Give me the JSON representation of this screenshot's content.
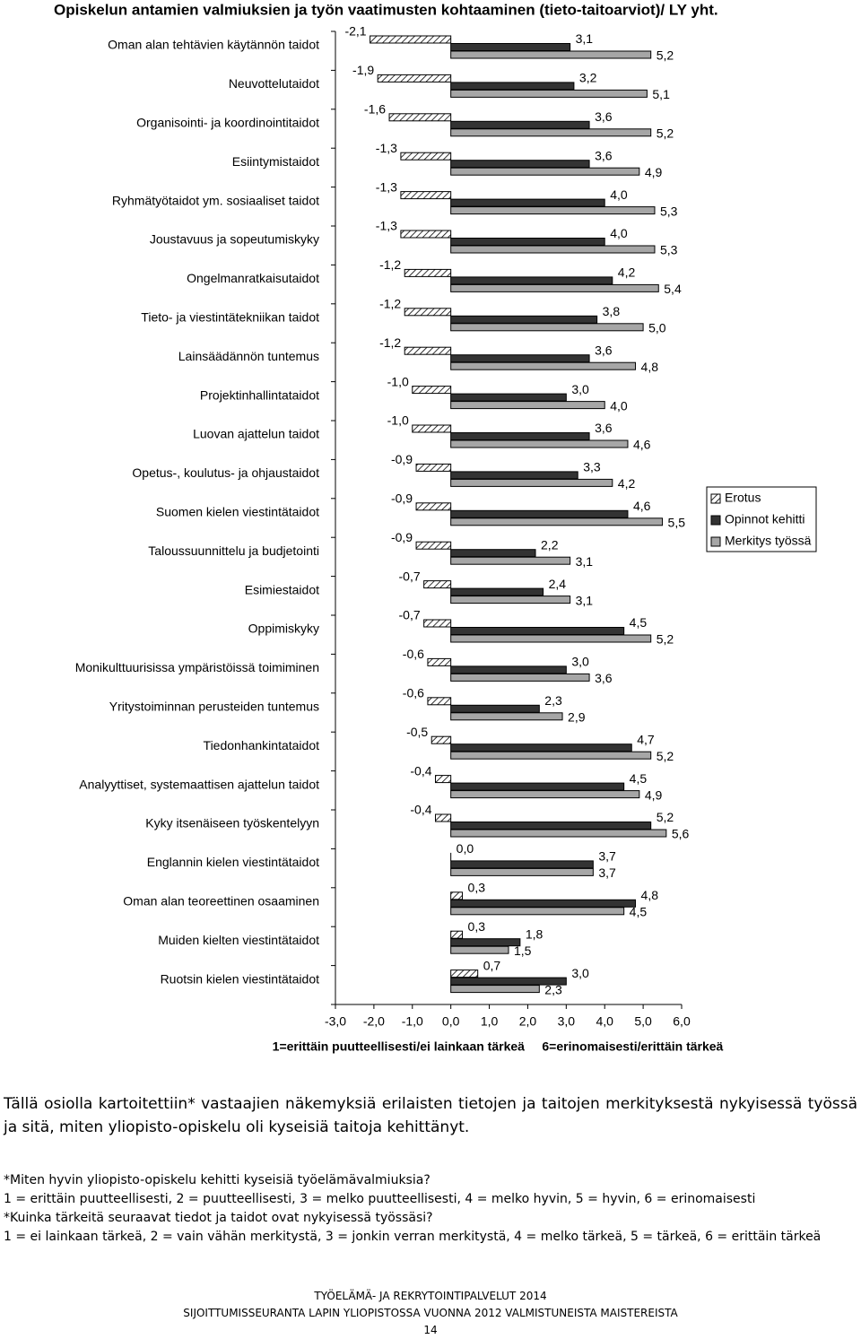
{
  "chart_data": {
    "type": "bar",
    "orientation": "horizontal",
    "title": "Opiskelun antamien valmiuksien ja työn vaatimusten kohtaaminen (tieto-taitoarviot)/ LY yht.",
    "xlabel": "1=erittäin puutteellisesti/ei lainkaan tärkeä     6=erinomaisesti/erittäin tärkeä",
    "categories": [
      "Oman alan tehtävien käytännön taidot",
      "Neuvottelutaidot",
      "Organisointi- ja koordinointitaidot",
      "Esiintymistaidot",
      "Ryhmätyötaidot ym. sosiaaliset taidot",
      "Joustavuus ja sopeutumiskyky",
      "Ongelmanratkaisutaidot",
      "Tieto- ja viestintätekniikan taidot",
      "Lainsäädännön tuntemus",
      "Projektinhallintataidot",
      "Luovan ajattelun taidot",
      "Opetus-, koulutus- ja ohjaustaidot",
      "Suomen kielen viestintätaidot",
      "Taloussuunnittelu ja budjetointi",
      "Esimiestaidot",
      "Oppimiskyky",
      "Monikulttuurisissa ympäristöissä toimiminen",
      "Yritystoiminnan perusteiden tuntemus",
      "Tiedonhankintataidot",
      "Analyyttiset, systemaattisen ajattelun taidot",
      "Kyky itsenäiseen työskentelyyn",
      "Englannin kielen viestintätaidot",
      "Oman alan teoreettinen osaaminen",
      "Muiden kielten viestintätaidot",
      "Ruotsin kielen viestintätaidot"
    ],
    "series": [
      {
        "name": "Erotus",
        "color": "#ffffff",
        "values": [
          -2.1,
          -1.9,
          -1.6,
          -1.3,
          -1.3,
          -1.3,
          -1.2,
          -1.2,
          -1.2,
          -1.0,
          -1.0,
          -0.9,
          -0.9,
          -0.9,
          -0.7,
          -0.7,
          -0.6,
          -0.6,
          -0.5,
          -0.4,
          -0.4,
          0.0,
          0.3,
          0.3,
          0.7
        ],
        "value_labels": [
          "-2,1",
          "-1,9",
          "-1,6",
          "-1,3",
          "-1,3",
          "-1,3",
          "-1,2",
          "-1,2",
          "-1,2",
          "-1,0",
          "-1,0",
          "-0,9",
          "-0,9",
          "-0,9",
          "-0,7",
          "-0,7",
          "-0,6",
          "-0,6",
          "-0,5",
          "-0,4",
          "-0,4",
          "0,0",
          "0,3",
          "0,3",
          "0,7"
        ]
      },
      {
        "name": "Opinnot kehitti",
        "color": "#333333",
        "values": [
          3.1,
          3.2,
          3.6,
          3.6,
          4.0,
          4.0,
          4.2,
          3.8,
          3.6,
          3.0,
          3.6,
          3.3,
          4.6,
          2.2,
          2.4,
          4.5,
          3.0,
          2.3,
          4.7,
          4.5,
          5.2,
          3.7,
          4.8,
          1.8,
          3.0
        ],
        "value_labels": [
          "3,1",
          "3,2",
          "3,6",
          "3,6",
          "4,0",
          "4,0",
          "4,2",
          "3,8",
          "3,6",
          "3,0",
          "3,6",
          "3,3",
          "4,6",
          "2,2",
          "2,4",
          "4,5",
          "3,0",
          "2,3",
          "4,7",
          "4,5",
          "5,2",
          "3,7",
          "4,8",
          "1,8",
          "3,0"
        ]
      },
      {
        "name": "Merkitys työssä",
        "color": "#a6a6a6",
        "values": [
          5.2,
          5.1,
          5.2,
          4.9,
          5.3,
          5.3,
          5.4,
          5.0,
          4.8,
          4.0,
          4.6,
          4.2,
          5.5,
          3.1,
          3.1,
          5.2,
          3.6,
          2.9,
          5.2,
          4.9,
          5.6,
          3.7,
          4.5,
          1.5,
          2.3
        ],
        "value_labels": [
          "5,2",
          "5,1",
          "5,2",
          "4,9",
          "5,3",
          "5,3",
          "5,4",
          "5,0",
          "4,8",
          "4,0",
          "4,6",
          "4,2",
          "5,5",
          "3,1",
          "3,1",
          "5,2",
          "3,6",
          "2,9",
          "5,2",
          "4,9",
          "5,6",
          "3,7",
          "4,5",
          "1,5",
          "2,3"
        ]
      }
    ],
    "xlim": [
      -3,
      6
    ],
    "xticks": [
      {
        "value": -3,
        "label": "-3,0"
      },
      {
        "value": -2,
        "label": "-2,0"
      },
      {
        "value": -1,
        "label": "-1,0"
      },
      {
        "value": 0,
        "label": "0,0"
      },
      {
        "value": 1,
        "label": "1,0"
      },
      {
        "value": 2,
        "label": "2,0"
      },
      {
        "value": 3,
        "label": "3,0"
      },
      {
        "value": 4,
        "label": "4,0"
      },
      {
        "value": 5,
        "label": "5,0"
      },
      {
        "value": 6,
        "label": "6,0"
      }
    ],
    "legend": "right"
  },
  "document": {
    "paragraph": "Tällä osiolla kartoitettiin* vastaajien näkemyksiä erilaisten tietojen ja taitojen merkityksestä nykyisessä työssä ja sitä, miten yliopisto-opiskelu oli kyseisiä taitoja kehittänyt.",
    "notes": [
      "*Miten hyvin yliopisto-opiskelu kehitti kyseisiä työelämävalmiuksia?",
      "1 = erittäin puutteellisesti, 2 = puutteellisesti, 3 = melko puutteellisesti, 4 = melko hyvin, 5 = hyvin, 6 = erinomaisesti",
      "*Kuinka tärkeitä seuraavat tiedot ja taidot ovat nykyisessä työssäsi?",
      "1 = ei lainkaan tärkeä, 2 = vain vähän merkitystä, 3 = jonkin verran merkitystä, 4 = melko tärkeä, 5 = tärkeä, 6 = erittäin tärkeä"
    ],
    "footer": [
      "TYÖELÄMÄ- JA REKRYTOINTIPALVELUT 2014",
      "SIJOITTUMISSEURANTA LAPIN YLIOPISTOSSA VUONNA 2012 VALMISTUNEISTA MAISTEREISTA"
    ],
    "page_number": 14
  }
}
